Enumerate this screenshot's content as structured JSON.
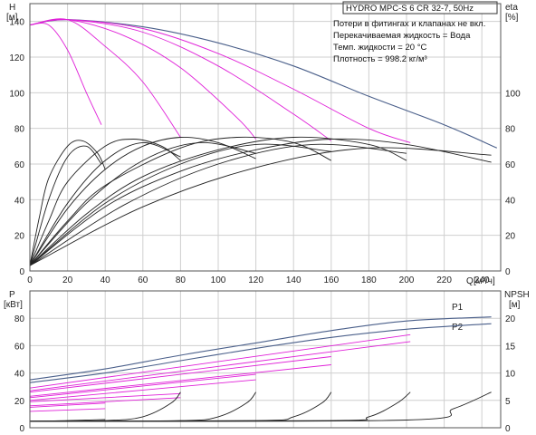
{
  "colors": {
    "outer": "#4a5f8a",
    "pink": "#e020d8",
    "black": "#222222"
  },
  "chart_data": [
    {
      "type": "line",
      "title": "HYDRO MPC-S 6 CR 32-7, 50Hz",
      "ylabel": "H",
      "yunit": "[м]",
      "ylabel_right": "eta",
      "yunit_right": "[%]",
      "xlabel": "Q",
      "xunit": "[м³/ч]",
      "xlim": [
        0,
        250
      ],
      "ylim": [
        0,
        150
      ],
      "ylim_right": [
        0,
        150
      ],
      "x_ticks": [
        0,
        20,
        40,
        60,
        80,
        100,
        120,
        140,
        160,
        180,
        200,
        220,
        240
      ],
      "y_ticks": [
        0,
        20,
        40,
        60,
        80,
        100,
        120,
        140
      ],
      "y_ticks_right": [
        0,
        20,
        40,
        60,
        80,
        100
      ],
      "grid": true,
      "info_lines": [
        "Потери в фитингах и клапанах не вкл.",
        "Перекачиваемая жидкость = Вода",
        "Темп. жидкости = 20 °C",
        "Плотность = 998.2 кг/м³"
      ],
      "series": [
        {
          "color": "outer",
          "x": [
            0,
            20,
            60,
            100,
            140,
            180,
            220,
            248
          ],
          "y": [
            138,
            141,
            137,
            128,
            115,
            98,
            82,
            69
          ]
        },
        {
          "color": "pink",
          "x": [
            0,
            10,
            20,
            30,
            38
          ],
          "y": [
            138,
            138,
            124,
            100,
            82
          ]
        },
        {
          "color": "pink",
          "x": [
            0,
            20,
            40,
            60,
            80
          ],
          "y": [
            138,
            141,
            126,
            106,
            75
          ]
        },
        {
          "color": "pink",
          "x": [
            0,
            20,
            50,
            80,
            110,
            120
          ],
          "y": [
            138,
            141,
            132,
            114,
            86,
            74
          ]
        },
        {
          "color": "pink",
          "x": [
            0,
            20,
            60,
            100,
            140,
            160
          ],
          "y": [
            138,
            141,
            134,
            115,
            88,
            73
          ]
        },
        {
          "color": "pink",
          "x": [
            0,
            20,
            60,
            100,
            140,
            180,
            202
          ],
          "y": [
            138,
            141,
            136,
            122,
            102,
            80,
            72
          ]
        },
        {
          "color": "black",
          "x": [
            0,
            5,
            10,
            20,
            28,
            36,
            40
          ],
          "y": [
            3,
            30,
            52,
            70,
            73,
            66,
            57
          ]
        },
        {
          "color": "black",
          "x": [
            0,
            10,
            20,
            40,
            55,
            70,
            80
          ],
          "y": [
            3,
            28,
            50,
            70,
            74,
            70,
            62
          ]
        },
        {
          "color": "black",
          "x": [
            0,
            20,
            40,
            60,
            80,
            100,
            120
          ],
          "y": [
            3,
            35,
            57,
            70,
            75,
            72,
            63
          ]
        },
        {
          "color": "black",
          "x": [
            0,
            20,
            40,
            80,
            110,
            140,
            160
          ],
          "y": [
            3,
            28,
            48,
            69,
            75,
            72,
            62
          ]
        },
        {
          "color": "black",
          "x": [
            0,
            30,
            60,
            100,
            140,
            180,
            200
          ],
          "y": [
            3,
            32,
            53,
            68,
            75,
            71,
            62
          ]
        },
        {
          "color": "black",
          "x": [
            0,
            40,
            80,
            120,
            160,
            200,
            245
          ],
          "y": [
            3,
            36,
            56,
            68,
            74,
            71,
            61
          ]
        },
        {
          "color": "black",
          "x": [
            0,
            10,
            20,
            30,
            38
          ],
          "y": [
            3,
            40,
            64,
            70,
            60
          ]
        },
        {
          "color": "black",
          "x": [
            0,
            20,
            40,
            60,
            80
          ],
          "y": [
            3,
            38,
            62,
            72,
            64
          ]
        },
        {
          "color": "black",
          "x": [
            0,
            30,
            60,
            90,
            120
          ],
          "y": [
            3,
            38,
            62,
            72,
            66
          ]
        },
        {
          "color": "black",
          "x": [
            0,
            40,
            80,
            120,
            160
          ],
          "y": [
            3,
            38,
            60,
            71,
            67
          ]
        },
        {
          "color": "black",
          "x": [
            0,
            50,
            100,
            150,
            200
          ],
          "y": [
            3,
            37,
            60,
            71,
            66
          ]
        },
        {
          "color": "black",
          "x": [
            0,
            60,
            120,
            180,
            245
          ],
          "y": [
            3,
            36,
            58,
            69,
            65
          ]
        }
      ]
    },
    {
      "type": "line",
      "ylabel": "P",
      "yunit": "[кВт]",
      "ylabel_right": "NPSH",
      "yunit_right": "[м]",
      "xlim": [
        0,
        250
      ],
      "ylim": [
        0,
        100
      ],
      "ylim_right": [
        0,
        25
      ],
      "y_ticks": [
        0,
        20,
        40,
        60,
        80
      ],
      "y_ticks_right": [
        0,
        5,
        10,
        15,
        20
      ],
      "grid": true,
      "series_labels": [
        "P1",
        "P2"
      ],
      "series": [
        {
          "name": "P1",
          "color": "outer",
          "x": [
            0,
            40,
            80,
            120,
            160,
            200,
            245
          ],
          "y": [
            35,
            43,
            53,
            62,
            71,
            78,
            81
          ]
        },
        {
          "name": "P2",
          "color": "outer",
          "x": [
            0,
            40,
            80,
            120,
            160,
            200,
            245
          ],
          "y": [
            33,
            40,
            49,
            58,
            66,
            72,
            76
          ]
        },
        {
          "color": "pink",
          "x": [
            0,
            40
          ],
          "y": [
            12,
            14
          ]
        },
        {
          "color": "pink",
          "x": [
            0,
            40
          ],
          "y": [
            15,
            18
          ]
        },
        {
          "color": "pink",
          "x": [
            0,
            80
          ],
          "y": [
            19,
            25
          ]
        },
        {
          "color": "pink",
          "x": [
            0,
            80
          ],
          "y": [
            16,
            22
          ]
        },
        {
          "color": "pink",
          "x": [
            0,
            120
          ],
          "y": [
            22,
            39
          ]
        },
        {
          "color": "pink",
          "x": [
            0,
            120
          ],
          "y": [
            20,
            35
          ]
        },
        {
          "color": "pink",
          "x": [
            0,
            160
          ],
          "y": [
            26,
            52
          ]
        },
        {
          "color": "pink",
          "x": [
            0,
            160
          ],
          "y": [
            23,
            46
          ]
        },
        {
          "color": "pink",
          "x": [
            0,
            202
          ],
          "y": [
            29,
            68
          ]
        },
        {
          "color": "pink",
          "x": [
            0,
            202
          ],
          "y": [
            27,
            63
          ]
        },
        {
          "color": "black",
          "x": [
            0,
            20,
            40
          ],
          "y": [
            1.2,
            1.3,
            1.5
          ],
          "axis": "right"
        },
        {
          "color": "black",
          "x": [
            0,
            40,
            60,
            75,
            80
          ],
          "y": [
            1.2,
            1.3,
            2.0,
            4.5,
            6.5
          ],
          "axis": "right"
        },
        {
          "color": "black",
          "x": [
            0,
            80,
            100,
            115,
            120
          ],
          "y": [
            1.2,
            1.3,
            2.0,
            4.5,
            6.5
          ],
          "axis": "right"
        },
        {
          "color": "black",
          "x": [
            0,
            120,
            140,
            155,
            160
          ],
          "y": [
            1.2,
            1.3,
            2.0,
            4.5,
            6.5
          ],
          "axis": "right"
        },
        {
          "color": "black",
          "x": [
            0,
            160,
            180,
            195,
            202
          ],
          "y": [
            1.2,
            1.3,
            2.0,
            4.5,
            6.5
          ],
          "axis": "right"
        },
        {
          "color": "black",
          "x": [
            0,
            200,
            225,
            245
          ],
          "y": [
            1.2,
            1.4,
            3.5,
            6.5
          ],
          "axis": "right"
        }
      ]
    }
  ]
}
